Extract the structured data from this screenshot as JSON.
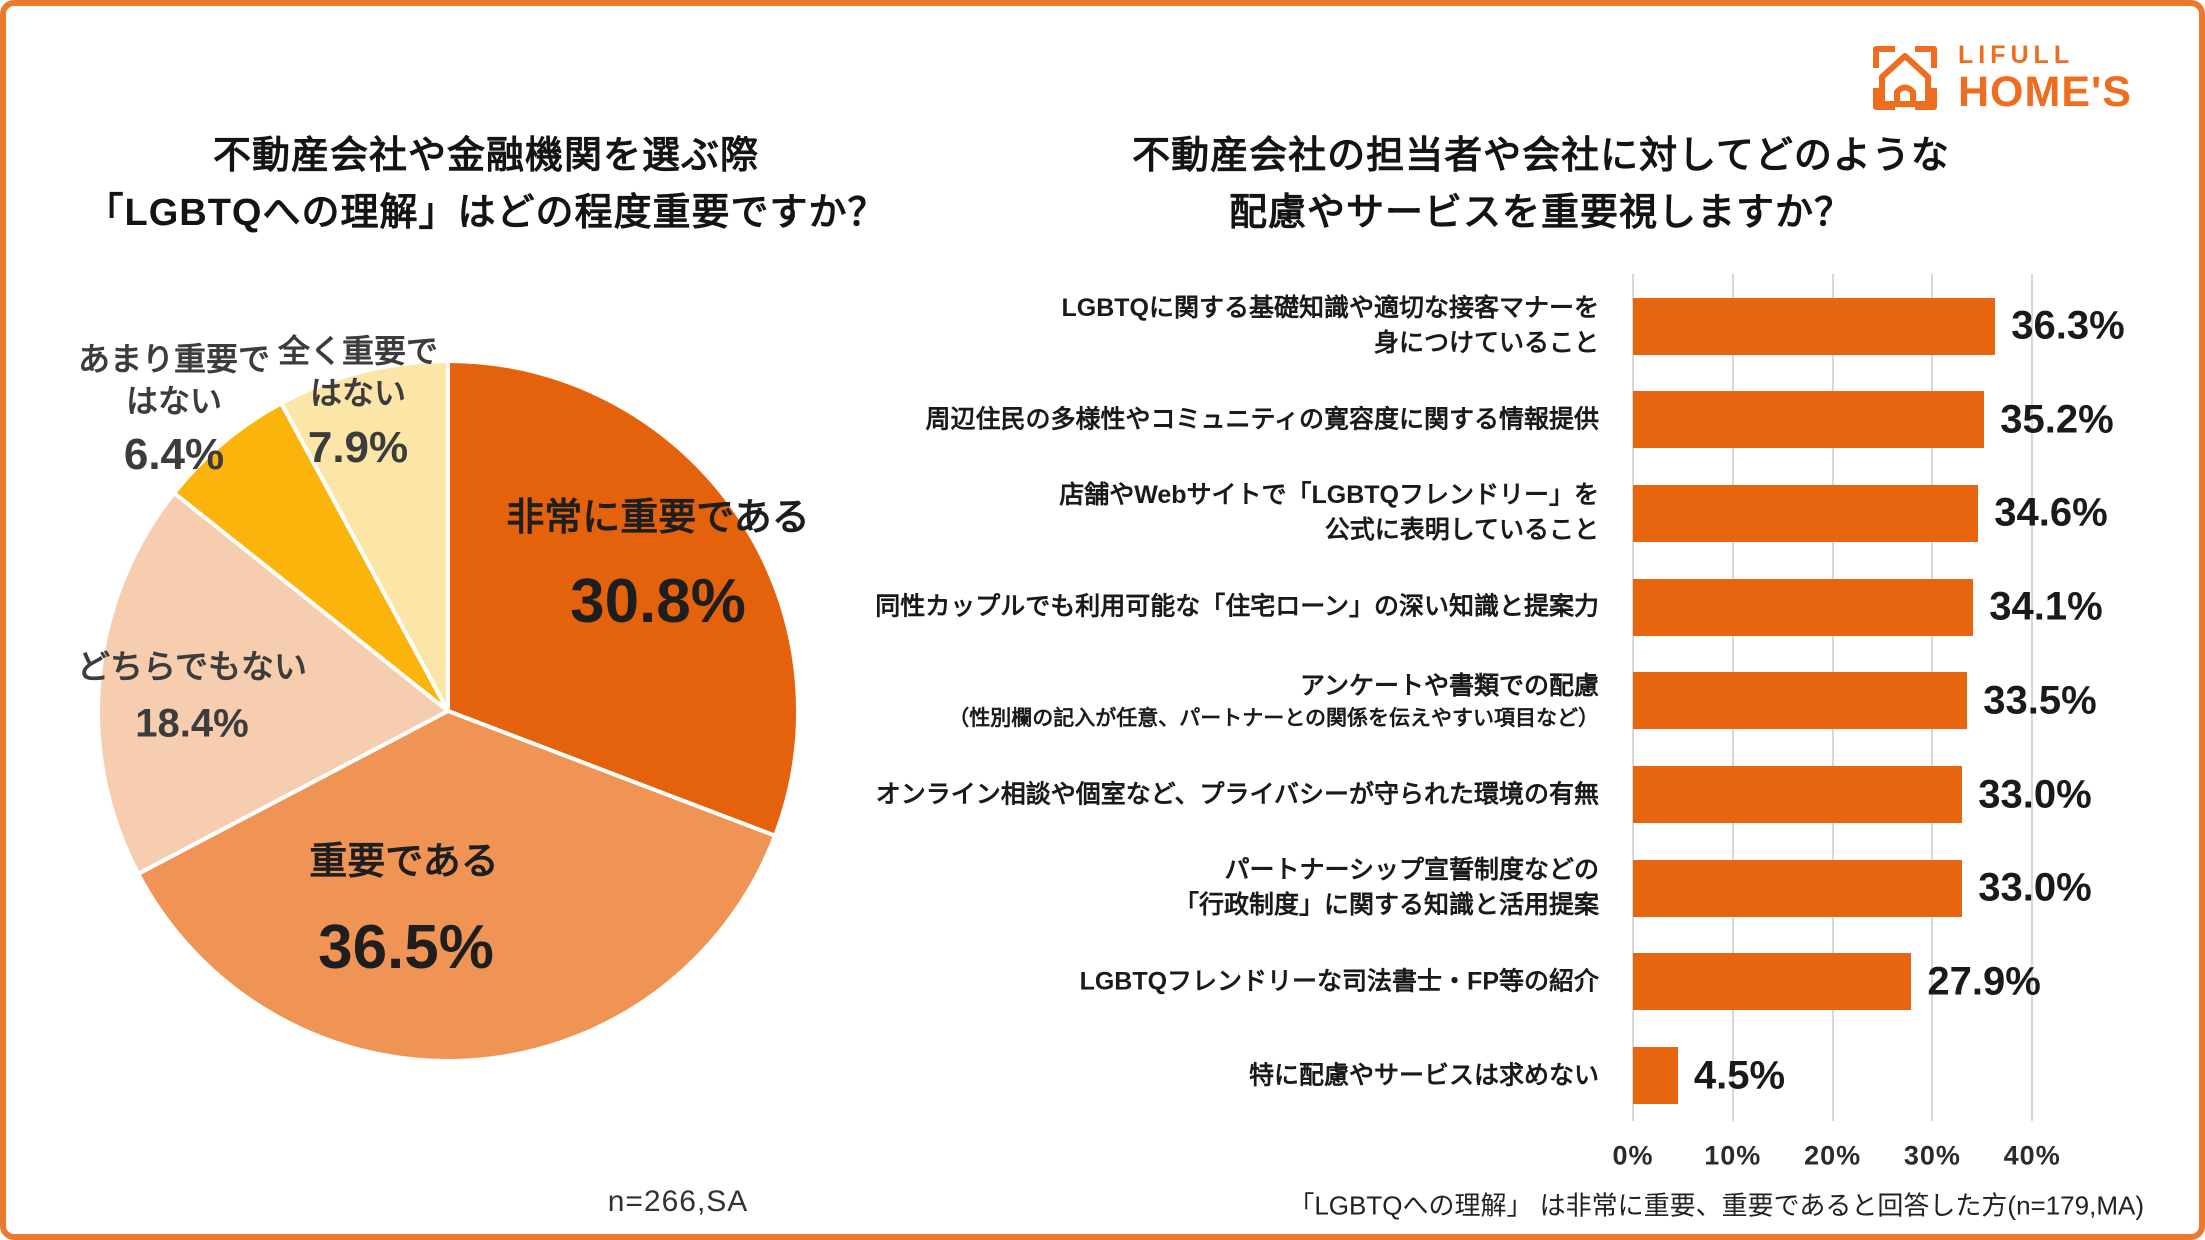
{
  "page": {
    "background": "#ffffff",
    "frame_color": "#EC7A2E"
  },
  "logo": {
    "line1": "LIFULL",
    "line2": "HOME'S",
    "color": "#EE6D1E",
    "icon": "house-viewfinder-icon"
  },
  "chart_data": [
    {
      "type": "pie",
      "title": "不動産会社や金融機関を選ぶ際\n「LGBTQへの理解」はどの程度重要ですか？",
      "footnote": "n=266,SA",
      "start_angle_deg": -90,
      "direction": "clockwise",
      "stroke_color": "#ffffff",
      "slices": [
        {
          "label": "非常に重要である",
          "value": 30.8,
          "color": "#E5620D"
        },
        {
          "label": "重要である",
          "value": 36.5,
          "color": "#EF9455"
        },
        {
          "label": "どちらでもない",
          "value": 18.4,
          "color": "#F6CDAE"
        },
        {
          "label": "あまり重要で\nはない",
          "value": 6.4,
          "color": "#FBB40B"
        },
        {
          "label": "全く重要で\nはない",
          "value": 7.9,
          "color": "#FBE6A7"
        }
      ]
    },
    {
      "type": "bar",
      "orientation": "horizontal",
      "title": "不動産会社の担当者や会社に対してどのような\n配慮やサービスを重要視しますか？",
      "footnote": "「LGBTQへの理解」 は非常に重要、重要であると回答した方(n=179,MA)",
      "bar_color": "#E8650F",
      "grid": true,
      "xlim": [
        0,
        40
      ],
      "xticks": [
        "0%",
        "10%",
        "20%",
        "30%",
        "40%"
      ],
      "items": [
        {
          "label_lines": [
            "LGBTQに関する基礎知識や適切な接客マナーを",
            "身につけていること"
          ],
          "value": 36.3
        },
        {
          "label_lines": [
            "周辺住民の多様性やコミュニティの寛容度に関する情報提供"
          ],
          "value": 35.2
        },
        {
          "label_lines": [
            "店舗やWebサイトで「LGBTQフレンドリー」を",
            "公式に表明していること"
          ],
          "value": 34.6
        },
        {
          "label_lines": [
            "同性カップルでも利用可能な「住宅ローン」の深い知識と提案力"
          ],
          "value": 34.1
        },
        {
          "label_lines": [
            "アンケートや書類での配慮",
            "（性別欄の記入が任意、パートナーとの関係を伝えやすい項目など）"
          ],
          "small_line2": true,
          "value": 33.5
        },
        {
          "label_lines": [
            "オンライン相談や個室など、プライバシーが守られた環境の有無"
          ],
          "value": 33.0
        },
        {
          "label_lines": [
            "パートナーシップ宣誓制度などの",
            "「行政制度」に関する知識と活用提案"
          ],
          "value": 33.0
        },
        {
          "label_lines": [
            "LGBTQフレンドリーな司法書士・FP等の紹介"
          ],
          "value": 27.9
        },
        {
          "label_lines": [
            "特に配慮やサービスは求めない"
          ],
          "value": 4.5
        }
      ]
    }
  ]
}
